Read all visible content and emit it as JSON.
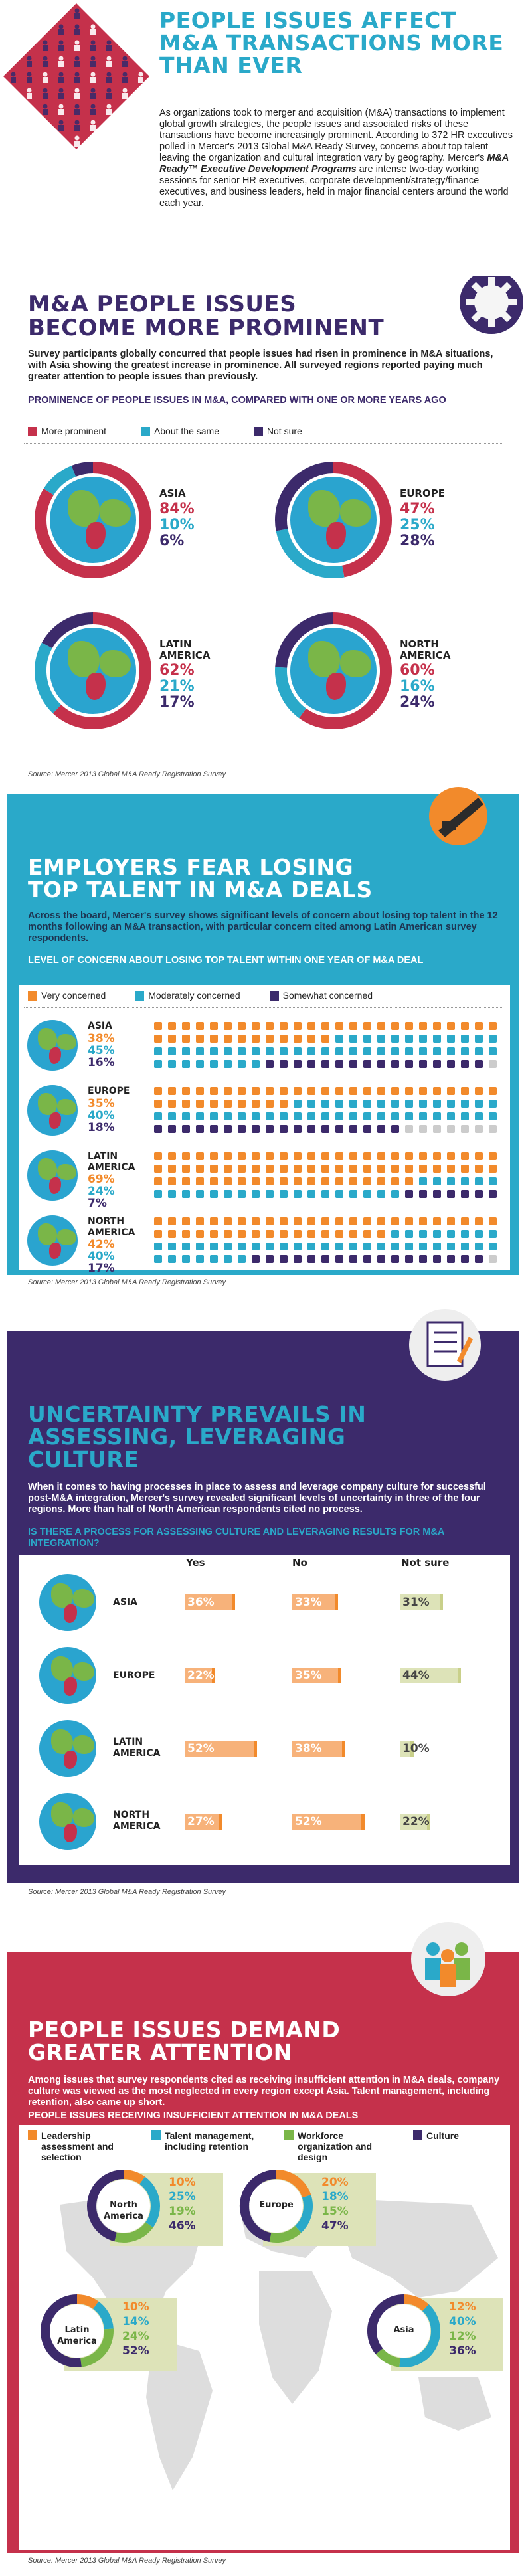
{
  "colors": {
    "teal": "#2aa9c9",
    "red": "#c5314b",
    "purple": "#3c2a6b",
    "orange": "#f28a2b",
    "green": "#7ab648",
    "tan": "#dde3b8"
  },
  "header": {
    "title": "PEOPLE ISSUES AFFECT M&A TRANSACTIONS MORE THAN EVER",
    "intro": "As organizations took to merger and acquisition (M&A) transactions to implement global growth strategies, the people issues and associated risks of these transactions have become increasingly prominent. According to 372 HR executives polled in Mercer's 2013 Global M&A Ready Survey, concerns about top talent leaving the organization and cultural integration vary by geography. Mercer's",
    "intro_em": "M&A Ready™ Executive Development Programs",
    "intro_end": "are intense two-day working sessions for senior HR executives, corporate development/strategy/finance executives, and business leaders, held in major financial centers around the world each year."
  },
  "s1": {
    "title": "M&A PEOPLE ISSUES BECOME MORE PROMINENT",
    "text": "Survey participants globally concurred that people issues had risen in prominence in M&A situations, with Asia showing the greatest increase in prominence. All surveyed regions reported paying much greater attention to people issues than previously.",
    "subtitle": "PROMINENCE OF PEOPLE ISSUES IN M&A, COMPARED WITH ONE OR MORE YEARS AGO",
    "legend": [
      "More prominent",
      "About the same",
      "Not sure"
    ],
    "source": "Source: Mercer 2013 Global M&A Ready Registration Survey"
  },
  "s2": {
    "title": "EMPLOYERS FEAR LOSING TOP TALENT IN M&A DEALS",
    "text": "Across the board, Mercer's survey shows significant levels of concern about losing top talent in the 12 months following an M&A transaction, with particular concern cited among Latin American survey respondents.",
    "subtitle": "LEVEL OF CONCERN ABOUT LOSING TOP TALENT WITHIN ONE YEAR OF M&A DEAL",
    "legend": [
      "Very concerned",
      "Moderately concerned",
      "Somewhat concerned"
    ],
    "source": "Source: Mercer 2013 Global M&A Ready Registration Survey"
  },
  "s3": {
    "title": "UNCERTAINTY PREVAILS IN ASSESSING, LEVERAGING CULTURE",
    "text": "When it comes to having processes in place to assess and leverage company culture for successful post-M&A integration, Mercer's survey revealed significant levels of uncertainty in three of the four regions. More than half of North American respondents cited no process.",
    "subtitle": "IS THERE A PROCESS FOR ASSESSING CULTURE AND LEVERAGING RESULTS FOR M&A INTEGRATION?",
    "cols": [
      "Yes",
      "No",
      "Not sure"
    ],
    "source": "Source: Mercer 2013 Global M&A Ready Registration Survey"
  },
  "s4": {
    "title": "PEOPLE ISSUES DEMAND GREATER ATTENTION",
    "text": "Among issues that survey respondents cited as receiving insufficient attention in M&A deals, company culture was viewed as the most neglected in every region except Asia. Talent management, including retention, also came up short.",
    "subtitle": "PEOPLE ISSUES RECEIVING INSUFFICIENT ATTENTION IN M&A DEALS",
    "legend": [
      "Leadership assessment and selection",
      "Talent management, including retention",
      "Workforce organization and design",
      "Culture"
    ],
    "source": "Source: Mercer 2013 Global M&A Ready Registration Survey"
  },
  "chart_data": [
    {
      "type": "pie",
      "title": "PROMINENCE OF PEOPLE ISSUES IN M&A, COMPARED WITH ONE OR MORE YEARS AGO",
      "categories": [
        "More prominent",
        "About the same",
        "Not sure"
      ],
      "series": [
        {
          "name": "ASIA",
          "values": [
            84,
            10,
            6
          ]
        },
        {
          "name": "EUROPE",
          "values": [
            47,
            25,
            28
          ]
        },
        {
          "name": "LATIN AMERICA",
          "values": [
            62,
            21,
            17
          ]
        },
        {
          "name": "NORTH AMERICA",
          "values": [
            60,
            16,
            24
          ]
        }
      ]
    },
    {
      "type": "bar",
      "title": "LEVEL OF CONCERN ABOUT LOSING TOP TALENT WITHIN ONE YEAR OF M&A DEAL",
      "categories": [
        "ASIA",
        "EUROPE",
        "LATIN AMERICA",
        "NORTH AMERICA"
      ],
      "series": [
        {
          "name": "Very concerned",
          "values": [
            38,
            35,
            69,
            42
          ]
        },
        {
          "name": "Moderately concerned",
          "values": [
            45,
            40,
            24,
            40
          ]
        },
        {
          "name": "Somewhat concerned",
          "values": [
            16,
            18,
            7,
            17
          ]
        }
      ]
    },
    {
      "type": "bar",
      "title": "IS THERE A PROCESS FOR ASSESSING CULTURE AND LEVERAGING RESULTS FOR M&A INTEGRATION?",
      "categories": [
        "ASIA",
        "EUROPE",
        "LATIN AMERICA",
        "NORTH AMERICA"
      ],
      "series": [
        {
          "name": "Yes",
          "values": [
            36,
            22,
            52,
            27
          ]
        },
        {
          "name": "No",
          "values": [
            33,
            35,
            38,
            52
          ]
        },
        {
          "name": "Not sure",
          "values": [
            31,
            44,
            10,
            22
          ]
        }
      ]
    },
    {
      "type": "table",
      "title": "PEOPLE ISSUES RECEIVING INSUFFICIENT ATTENTION IN M&A DEALS",
      "categories": [
        "Leadership assessment and selection",
        "Talent management, including retention",
        "Workforce organization and design",
        "Culture"
      ],
      "series": [
        {
          "name": "North America",
          "values": [
            10,
            25,
            19,
            46
          ]
        },
        {
          "name": "Europe",
          "values": [
            20,
            18,
            15,
            47
          ]
        },
        {
          "name": "Latin America",
          "values": [
            10,
            14,
            24,
            52
          ]
        },
        {
          "name": "Asia",
          "values": [
            12,
            40,
            12,
            36
          ]
        }
      ]
    }
  ],
  "labels": {
    "asia": "ASIA",
    "europe": "EUROPE",
    "latam": "LATIN AMERICA",
    "na": "NORTH AMERICA",
    "na_short": "North America",
    "eu_short": "Europe",
    "la_short": "Latin America",
    "as_short": "Asia"
  }
}
